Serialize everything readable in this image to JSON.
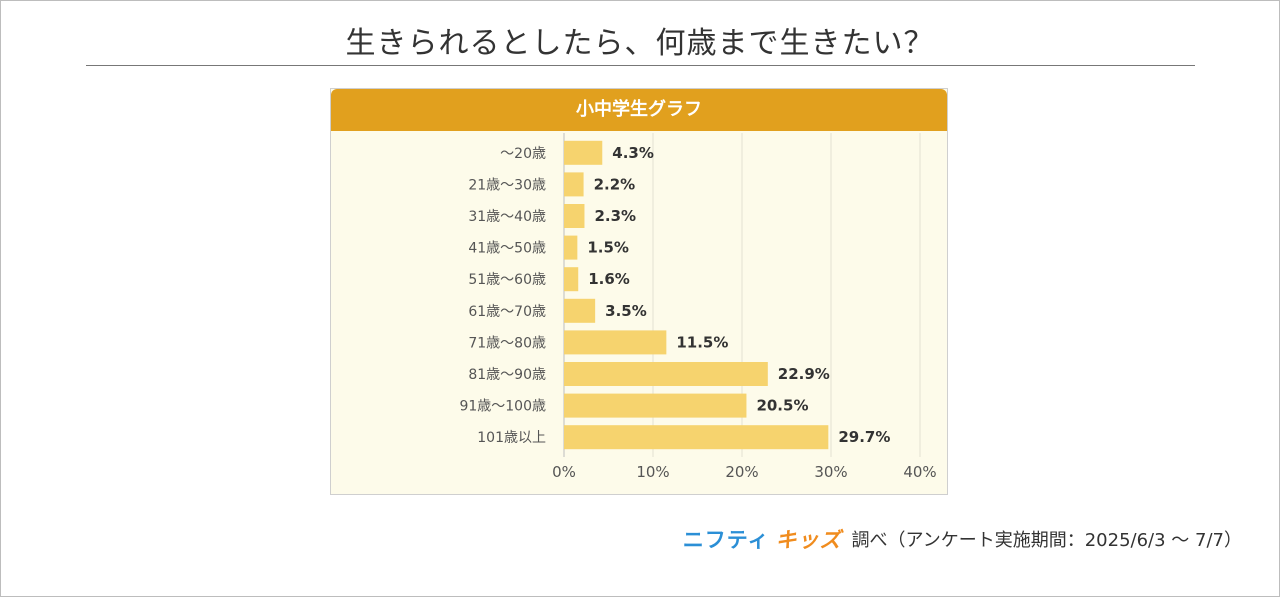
{
  "title": "生きられるとしたら、何歳まで生きたい？",
  "panel_title": "小中学生グラフ",
  "colors": {
    "header": "#e1a01e",
    "bar": "#f6d36e",
    "panel_bg": "#fdfbea"
  },
  "footer": {
    "logo_part1": "ニフティ",
    "logo_part2": "キッズ",
    "text": "調べ（アンケート実施期間：2025/6/3 ～ 7/7）"
  },
  "chart_data": {
    "type": "bar",
    "orientation": "horizontal",
    "categories": [
      "～20歳",
      "21歳～30歳",
      "31歳～40歳",
      "41歳～50歳",
      "51歳～60歳",
      "61歳～70歳",
      "71歳～80歳",
      "81歳～90歳",
      "91歳～100歳",
      "101歳以上"
    ],
    "values": [
      4.3,
      2.2,
      2.3,
      1.5,
      1.6,
      3.5,
      11.5,
      22.9,
      20.5,
      29.7
    ],
    "value_labels": [
      "4.3%",
      "2.2%",
      "2.3%",
      "1.5%",
      "1.6%",
      "3.5%",
      "11.5%",
      "22.9%",
      "20.5%",
      "29.7%"
    ],
    "xlim": [
      0,
      40
    ],
    "ticks": [
      0,
      10,
      20,
      30,
      40
    ],
    "tick_labels": [
      "0%",
      "10%",
      "20%",
      "30%",
      "40%"
    ],
    "grid": true
  }
}
